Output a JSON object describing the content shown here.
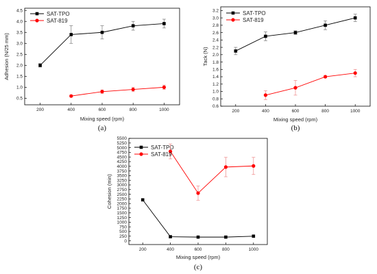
{
  "chart_data": [
    {
      "type": "line",
      "panel_label": "(a)",
      "xlabel": "Mixing speed (rpm)",
      "ylabel": "Adhesion (N/25 mm)",
      "xlim": [
        100,
        1100
      ],
      "ylim": [
        0.2,
        4.6
      ],
      "xticks": [
        "200",
        "400",
        "600",
        "800",
        "1000"
      ],
      "yticks": [
        "0.5",
        "1.0",
        "1.5",
        "2.0",
        "2.5",
        "3.0",
        "3.5",
        "4.0",
        "4.5"
      ],
      "legend_position": "top-left",
      "grid": false,
      "series": [
        {
          "name": "SAT-TPO",
          "color": "#000000",
          "marker": "square",
          "x": [
            200,
            400,
            600,
            800,
            1000
          ],
          "y": [
            2.0,
            3.4,
            3.5,
            3.8,
            3.9
          ],
          "err": [
            0.08,
            0.4,
            0.3,
            0.2,
            0.2
          ]
        },
        {
          "name": "SAT-819",
          "color": "#ff0000",
          "marker": "circle",
          "x": [
            400,
            600,
            800,
            1000
          ],
          "y": [
            0.6,
            0.8,
            0.9,
            1.0
          ],
          "err": [
            0.05,
            0.08,
            0.1,
            0.1
          ]
        }
      ]
    },
    {
      "type": "line",
      "panel_label": "(b)",
      "xlabel": "Mixing speed (rpm)",
      "ylabel": "Tack (N)",
      "xlim": [
        100,
        1100
      ],
      "ylim": [
        0.6,
        3.3
      ],
      "xticks": [
        "200",
        "400",
        "600",
        "800",
        "1000"
      ],
      "yticks": [
        "0.6",
        "0.8",
        "1.0",
        "1.2",
        "1.4",
        "1.6",
        "1.8",
        "2.0",
        "2.2",
        "2.4",
        "2.6",
        "2.8",
        "3.0",
        "3.2"
      ],
      "legend_position": "top-left",
      "grid": false,
      "series": [
        {
          "name": "SAT-TPO",
          "color": "#000000",
          "marker": "square",
          "x": [
            200,
            400,
            600,
            800,
            1000
          ],
          "y": [
            2.1,
            2.5,
            2.6,
            2.8,
            3.0
          ],
          "err": [
            0.1,
            0.12,
            0.05,
            0.12,
            0.1
          ]
        },
        {
          "name": "SAT-819",
          "color": "#ff0000",
          "marker": "circle",
          "x": [
            400,
            600,
            800,
            1000
          ],
          "y": [
            0.9,
            1.1,
            1.4,
            1.5
          ],
          "err": [
            0.12,
            0.2,
            0.03,
            0.1
          ]
        }
      ]
    },
    {
      "type": "line",
      "panel_label": "(c)",
      "xlabel": "Mixing speed (rpm)",
      "ylabel": "Cohesion (min)",
      "xlim": [
        100,
        1100
      ],
      "ylim": [
        -200,
        5500
      ],
      "xticks": [
        "200",
        "400",
        "600",
        "800",
        "1000"
      ],
      "yticks": [
        "0",
        "250",
        "500",
        "750",
        "1000",
        "1250",
        "1500",
        "1750",
        "2000",
        "2250",
        "2500",
        "2750",
        "3000",
        "3250",
        "3500",
        "3750",
        "4000",
        "4250",
        "4500",
        "4750",
        "5000",
        "5250",
        "5500"
      ],
      "legend_position": "top-left",
      "grid": false,
      "series": [
        {
          "name": "SAT-TPO",
          "color": "#000000",
          "marker": "square",
          "x": [
            200,
            400,
            600,
            800,
            1000
          ],
          "y": [
            2200,
            220,
            200,
            200,
            250
          ],
          "err": [
            0,
            0,
            0,
            0,
            0
          ]
        },
        {
          "name": "SAT-819",
          "color": "#ff0000",
          "marker": "circle",
          "x": [
            400,
            600,
            800,
            1000
          ],
          "y": [
            4800,
            2560,
            3960,
            4020
          ],
          "err": [
            400,
            380,
            520,
            460
          ]
        }
      ]
    }
  ]
}
